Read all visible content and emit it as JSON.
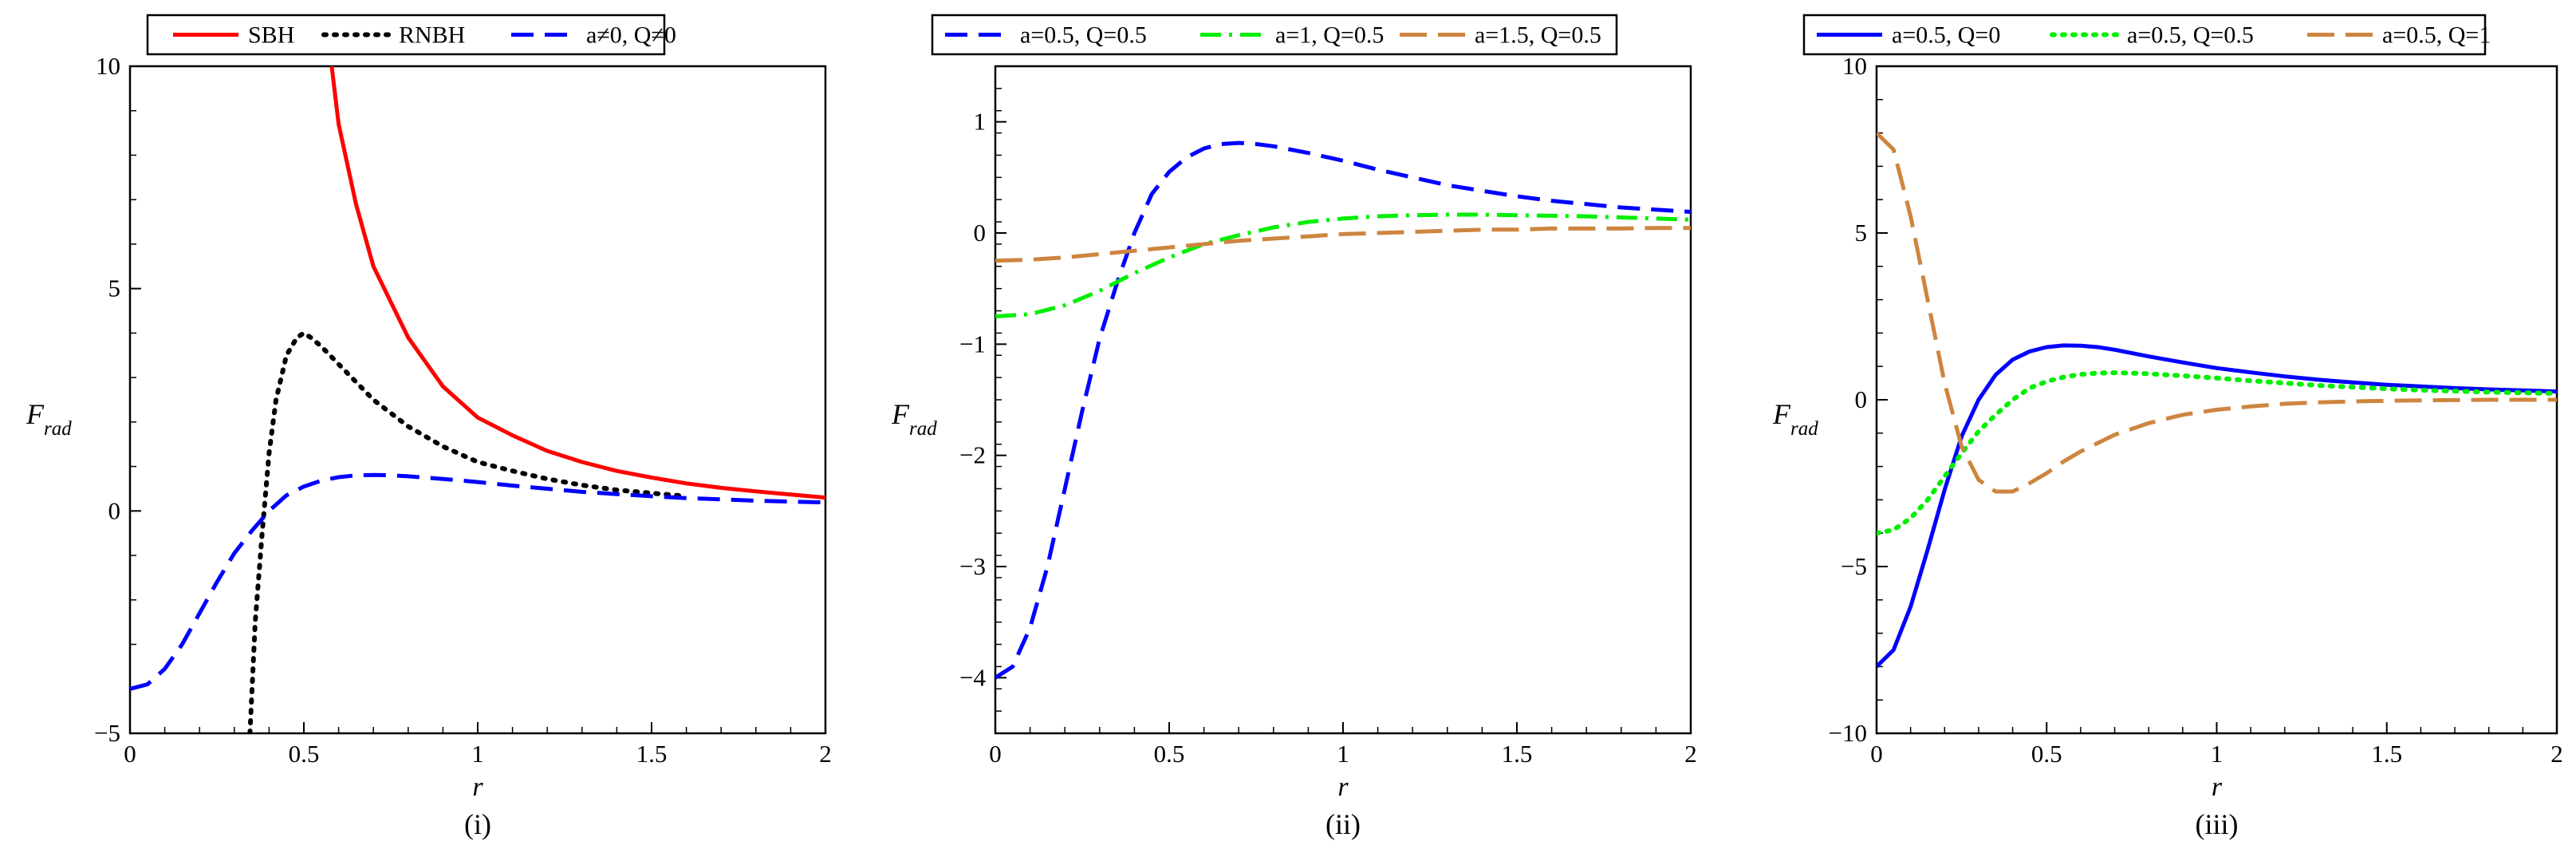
{
  "chart_data": [
    {
      "type": "line",
      "xlabel": "r",
      "ylabel_main": "F",
      "ylabel_sub": "rad",
      "caption": "(i)",
      "xlim": [
        0,
        2
      ],
      "ylim": [
        -5,
        10
      ],
      "xticks": [
        0,
        0.5,
        1,
        1.5,
        2
      ],
      "xtick_labels": [
        "0",
        "0.5",
        "1",
        "1.5",
        "2"
      ],
      "yticks": [
        -5,
        0,
        5,
        10
      ],
      "ytick_labels": [
        "−5",
        "0",
        "5",
        "10"
      ],
      "legend": "top",
      "grid": false,
      "series": [
        {
          "name": "SBH",
          "color": "#ff0000",
          "dash": "solid",
          "x": [
            0.58,
            0.6,
            0.65,
            0.7,
            0.8,
            0.9,
            1.0,
            1.1,
            1.2,
            1.3,
            1.4,
            1.5,
            1.6,
            1.7,
            1.8,
            1.9,
            2.0
          ],
          "y": [
            10.0,
            8.7,
            6.9,
            5.5,
            3.9,
            2.8,
            2.1,
            1.7,
            1.35,
            1.1,
            0.9,
            0.75,
            0.62,
            0.52,
            0.44,
            0.37,
            0.3
          ]
        },
        {
          "name": "RNBH",
          "color": "#000000",
          "dash": "dotted",
          "x": [
            0.345,
            0.36,
            0.38,
            0.4,
            0.42,
            0.45,
            0.48,
            0.5,
            0.52,
            0.55,
            0.6,
            0.7,
            0.8,
            0.9,
            1.0,
            1.1,
            1.2,
            1.3,
            1.4,
            1.5,
            1.6
          ],
          "y": [
            -5.0,
            -2.5,
            -0.5,
            1.3,
            2.5,
            3.5,
            3.9,
            4.0,
            3.9,
            3.7,
            3.3,
            2.5,
            1.9,
            1.45,
            1.1,
            0.9,
            0.72,
            0.58,
            0.47,
            0.4,
            0.33
          ]
        },
        {
          "name": "a≠0, Q≠0",
          "color": "#0000ff",
          "dash": "dashed",
          "x": [
            0,
            0.05,
            0.1,
            0.15,
            0.2,
            0.25,
            0.3,
            0.35,
            0.4,
            0.45,
            0.5,
            0.55,
            0.6,
            0.65,
            0.7,
            0.75,
            0.8,
            0.9,
            1.0,
            1.1,
            1.2,
            1.3,
            1.4,
            1.5,
            1.6,
            1.7,
            1.8,
            1.9,
            2.0
          ],
          "y": [
            -4.0,
            -3.9,
            -3.55,
            -3.0,
            -2.3,
            -1.6,
            -0.95,
            -0.45,
            0.0,
            0.35,
            0.55,
            0.68,
            0.76,
            0.8,
            0.81,
            0.8,
            0.78,
            0.72,
            0.65,
            0.57,
            0.5,
            0.43,
            0.38,
            0.33,
            0.29,
            0.26,
            0.23,
            0.21,
            0.19
          ]
        }
      ]
    },
    {
      "type": "line",
      "xlabel": "r",
      "ylabel_main": "F",
      "ylabel_sub": "rad",
      "caption": "(ii)",
      "xlim": [
        0,
        2
      ],
      "ylim": [
        -4.5,
        1.5
      ],
      "xticks": [
        0,
        0.5,
        1,
        1.5,
        2
      ],
      "xtick_labels": [
        "0",
        "0.5",
        "1",
        "1.5",
        "2"
      ],
      "yticks": [
        -4,
        -3,
        -2,
        -1,
        0,
        1
      ],
      "ytick_labels": [
        "−4",
        "−3",
        "−2",
        "−1",
        "0",
        "1"
      ],
      "legend": "top",
      "grid": false,
      "series": [
        {
          "name": "a=0.5, Q=0.5",
          "color": "#0000ff",
          "dash": "dashed",
          "x": [
            0,
            0.05,
            0.1,
            0.15,
            0.2,
            0.25,
            0.3,
            0.35,
            0.4,
            0.45,
            0.5,
            0.55,
            0.6,
            0.65,
            0.7,
            0.75,
            0.8,
            0.9,
            1.0,
            1.1,
            1.2,
            1.3,
            1.4,
            1.5,
            1.6,
            1.7,
            1.8,
            1.9,
            2.0
          ],
          "y": [
            -4.0,
            -3.9,
            -3.55,
            -3.0,
            -2.3,
            -1.6,
            -0.95,
            -0.45,
            0.0,
            0.35,
            0.55,
            0.68,
            0.76,
            0.8,
            0.81,
            0.8,
            0.78,
            0.72,
            0.65,
            0.57,
            0.5,
            0.43,
            0.38,
            0.33,
            0.29,
            0.26,
            0.23,
            0.21,
            0.19
          ]
        },
        {
          "name": "a=1, Q=0.5",
          "color": "#00ee00",
          "dash": "dashdot",
          "x": [
            0,
            0.1,
            0.2,
            0.3,
            0.4,
            0.5,
            0.6,
            0.7,
            0.8,
            0.9,
            1.0,
            1.1,
            1.2,
            1.3,
            1.4,
            1.5,
            1.6,
            1.7,
            1.8,
            1.9,
            2.0
          ],
          "y": [
            -0.75,
            -0.73,
            -0.65,
            -0.52,
            -0.36,
            -0.22,
            -0.1,
            -0.02,
            0.05,
            0.1,
            0.13,
            0.15,
            0.16,
            0.165,
            0.165,
            0.16,
            0.155,
            0.15,
            0.14,
            0.13,
            0.12
          ]
        },
        {
          "name": "a=1.5, Q=0.5",
          "color": "#cd853f",
          "dash": "longdash",
          "x": [
            0,
            0.1,
            0.2,
            0.3,
            0.4,
            0.5,
            0.6,
            0.7,
            0.8,
            0.9,
            1.0,
            1.1,
            1.2,
            1.3,
            1.4,
            1.5,
            1.6,
            1.7,
            1.8,
            1.9,
            2.0
          ],
          "y": [
            -0.25,
            -0.24,
            -0.22,
            -0.19,
            -0.16,
            -0.13,
            -0.1,
            -0.07,
            -0.05,
            -0.03,
            -0.01,
            0.0,
            0.01,
            0.02,
            0.03,
            0.03,
            0.04,
            0.04,
            0.04,
            0.045,
            0.045
          ]
        }
      ]
    },
    {
      "type": "line",
      "xlabel": "r",
      "ylabel_main": "F",
      "ylabel_sub": "rad",
      "caption": "(iii)",
      "xlim": [
        0,
        2
      ],
      "ylim": [
        -10,
        10
      ],
      "xticks": [
        0,
        0.5,
        1,
        1.5,
        2
      ],
      "xtick_labels": [
        "0",
        "0.5",
        "1",
        "1.5",
        "2"
      ],
      "yticks": [
        -10,
        -5,
        0,
        5,
        10
      ],
      "ytick_labels": [
        "−10",
        "−5",
        "0",
        "5",
        "10"
      ],
      "legend": "top",
      "grid": false,
      "series": [
        {
          "name": "a=0.5, Q=0",
          "color": "#0000ff",
          "dash": "solid",
          "x": [
            0,
            0.05,
            0.1,
            0.15,
            0.2,
            0.25,
            0.3,
            0.35,
            0.4,
            0.45,
            0.5,
            0.55,
            0.6,
            0.65,
            0.7,
            0.8,
            0.9,
            1.0,
            1.1,
            1.2,
            1.3,
            1.4,
            1.5,
            1.6,
            1.7,
            1.8,
            1.9,
            2.0
          ],
          "y": [
            -8.0,
            -7.5,
            -6.2,
            -4.5,
            -2.7,
            -1.1,
            0.0,
            0.75,
            1.2,
            1.45,
            1.58,
            1.63,
            1.62,
            1.58,
            1.5,
            1.3,
            1.12,
            0.95,
            0.82,
            0.7,
            0.6,
            0.52,
            0.45,
            0.4,
            0.35,
            0.31,
            0.28,
            0.25
          ]
        },
        {
          "name": "a=0.5, Q=0.5",
          "color": "#00ee00",
          "dash": "dotted",
          "x": [
            0,
            0.05,
            0.1,
            0.15,
            0.2,
            0.25,
            0.3,
            0.35,
            0.4,
            0.45,
            0.5,
            0.55,
            0.6,
            0.65,
            0.7,
            0.75,
            0.8,
            0.9,
            1.0,
            1.1,
            1.2,
            1.3,
            1.4,
            1.5,
            1.6,
            1.7,
            1.8,
            1.9,
            2.0
          ],
          "y": [
            -4.0,
            -3.9,
            -3.55,
            -3.0,
            -2.3,
            -1.6,
            -0.95,
            -0.45,
            0.0,
            0.35,
            0.55,
            0.68,
            0.76,
            0.8,
            0.81,
            0.8,
            0.78,
            0.72,
            0.65,
            0.57,
            0.5,
            0.43,
            0.38,
            0.33,
            0.29,
            0.26,
            0.23,
            0.21,
            0.19
          ]
        },
        {
          "name": "a=0.5, Q=1",
          "color": "#cd853f",
          "dash": "longdash",
          "x": [
            0,
            0.05,
            0.1,
            0.15,
            0.2,
            0.25,
            0.3,
            0.35,
            0.4,
            0.45,
            0.5,
            0.55,
            0.6,
            0.7,
            0.8,
            0.9,
            1.0,
            1.1,
            1.2,
            1.3,
            1.4,
            1.5,
            1.6,
            1.7,
            1.8,
            1.9,
            2.0
          ],
          "y": [
            8.0,
            7.5,
            5.5,
            3.0,
            0.5,
            -1.4,
            -2.4,
            -2.75,
            -2.75,
            -2.5,
            -2.2,
            -1.85,
            -1.55,
            -1.05,
            -0.7,
            -0.45,
            -0.3,
            -0.2,
            -0.12,
            -0.08,
            -0.05,
            -0.03,
            -0.02,
            -0.01,
            0.0,
            0.0,
            0.0
          ]
        }
      ]
    }
  ]
}
